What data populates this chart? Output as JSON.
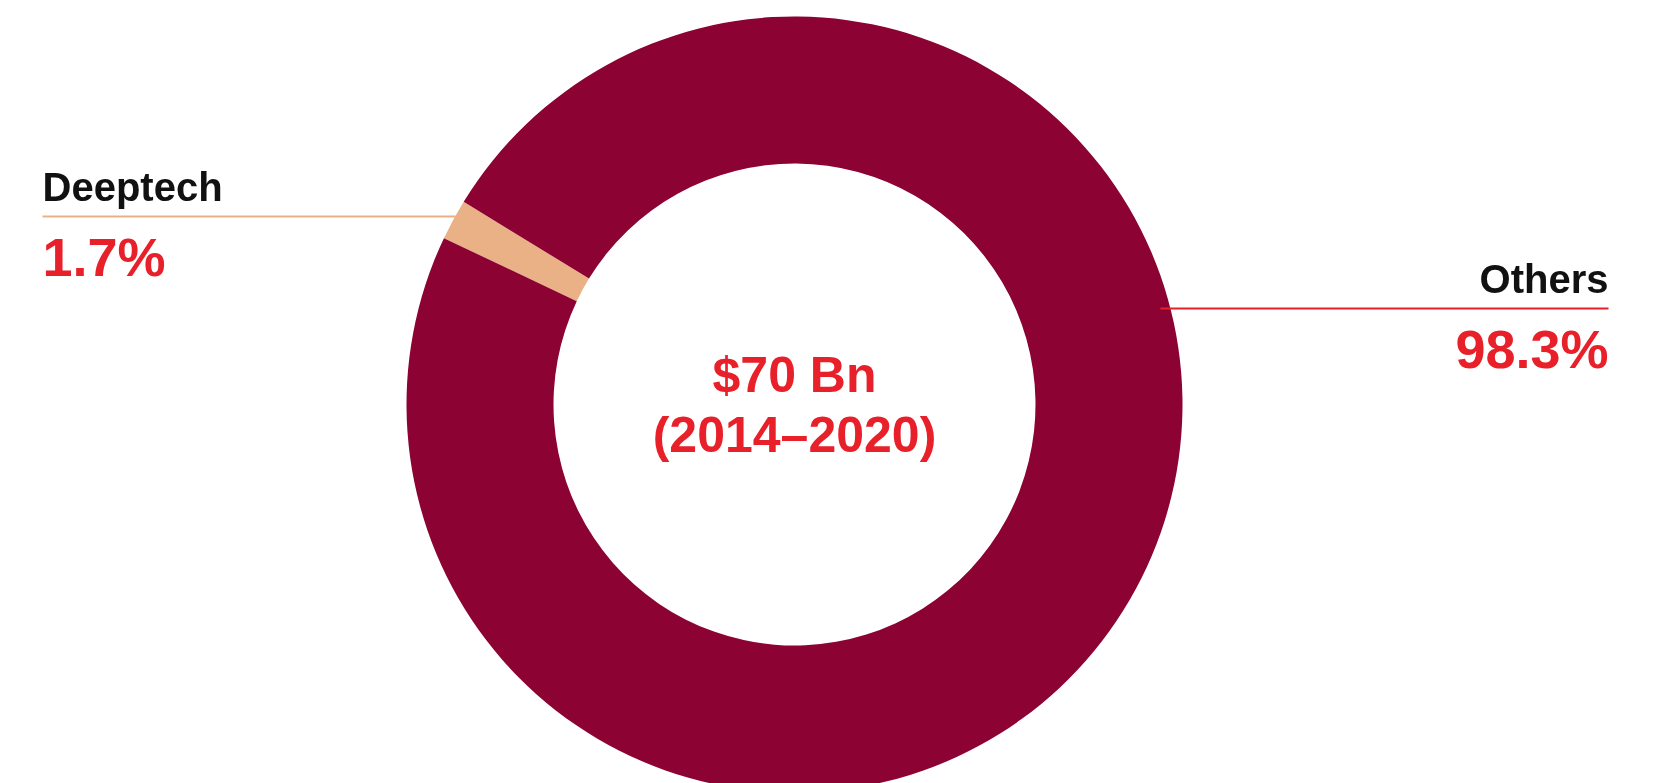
{
  "chart_data": {
    "type": "donut",
    "categories": [
      "Deeptech",
      "Others"
    ],
    "values": [
      1.7,
      98.3
    ],
    "colors": [
      "#e9b185",
      "#8c0232"
    ],
    "value_labels": [
      "1.7%",
      "98.3%"
    ],
    "annotations": [
      "$70 Bn",
      "(2014–2020)"
    ]
  }
}
